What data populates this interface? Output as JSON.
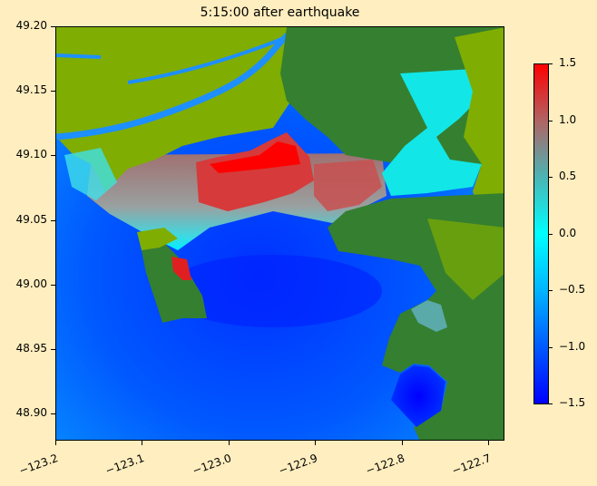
{
  "chart_data": {
    "type": "heatmap",
    "title": "5:15:00 after earthquake",
    "xlabel": "",
    "ylabel": "",
    "xlim": [
      -123.2,
      -122.681
    ],
    "ylim": [
      48.879,
      49.2
    ],
    "xticks": [
      -123.2,
      -123.1,
      -123.0,
      -122.9,
      -122.8,
      -122.7
    ],
    "xtick_labels": [
      "−123.2",
      "−123.1",
      "−123.0",
      "−122.9",
      "−122.8",
      "−122.7"
    ],
    "yticks": [
      49.2,
      49.15,
      49.1,
      49.05,
      49.0,
      48.95,
      48.9
    ],
    "ytick_labels": [
      "49.20",
      "49.15",
      "49.10",
      "49.05",
      "49.00",
      "48.95",
      "48.90"
    ],
    "colorbar": {
      "range": [
        -1.5,
        1.5
      ],
      "ticks": [
        1.5,
        1.0,
        0.5,
        0.0,
        -0.5,
        -1.0,
        -1.5
      ],
      "tick_labels": [
        "1.5",
        "1.0",
        "0.5",
        "0.0",
        "−0.5",
        "−1.0",
        "−1.5"
      ],
      "colormap": [
        {
          "value": -1.5,
          "color": "#0000ff"
        },
        {
          "value": -0.5,
          "color": "#00b4ff"
        },
        {
          "value": 0.0,
          "color": "#00ffff"
        },
        {
          "value": 0.5,
          "color": "#4cb4b4"
        },
        {
          "value": 1.0,
          "color": "#b06464"
        },
        {
          "value": 1.5,
          "color": "#ff0000"
        }
      ],
      "location": "right"
    },
    "land_colors": {
      "lowland": "#7fad02",
      "upland": "#357f30"
    },
    "grid": false
  }
}
